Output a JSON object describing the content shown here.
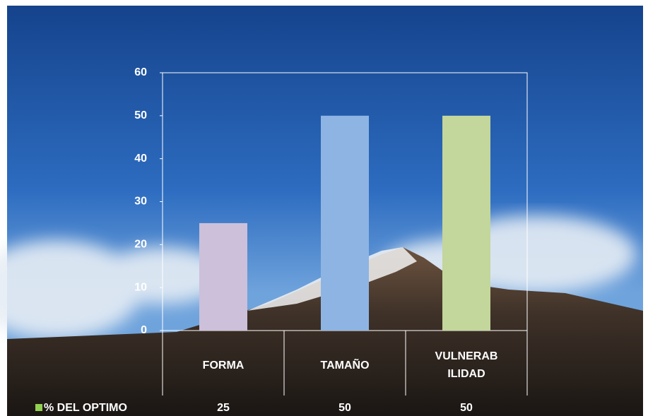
{
  "chart_data": {
    "type": "bar",
    "categories": [
      "FORMA",
      "TAMAÑO",
      "VULNERABILIDAD"
    ],
    "series": [
      {
        "name": "% DEL OPTIMO",
        "color": "#92d050",
        "colors": [
          "#ccc0da",
          "#8eb4e3",
          "#c3d69b"
        ],
        "values": [
          25,
          50,
          50
        ]
      }
    ],
    "ylim": [
      0,
      60
    ],
    "yticks": [
      0,
      10,
      20,
      30,
      40,
      50,
      60
    ],
    "grid": false,
    "data_table": true
  }
}
